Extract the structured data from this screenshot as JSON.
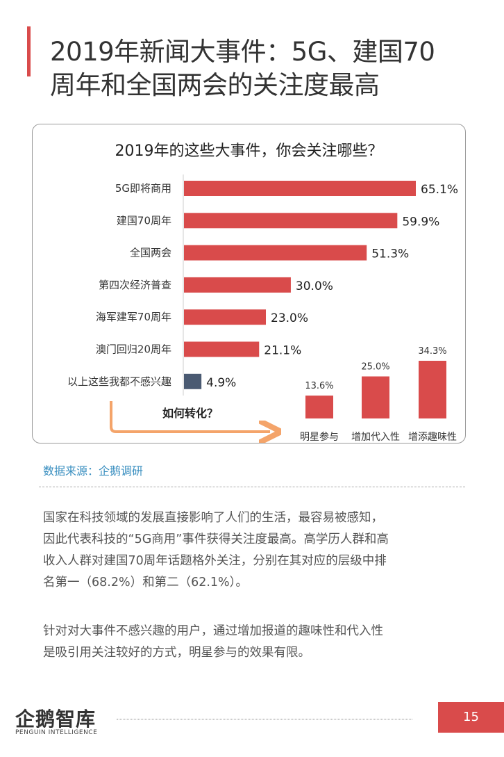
{
  "header": {
    "title_line1": "2019年新闻大事件：5G、建国70",
    "title_line2": "周年和全国两会的关注度最高"
  },
  "chart_data": [
    {
      "type": "bar",
      "orientation": "horizontal",
      "title": "2019年的这些大事件，你会关注哪些？",
      "categories": [
        "5G即将商用",
        "建国70周年",
        "全国两会",
        "第四次经济普查",
        "海军建军70周年",
        "澳门回归20周年",
        "以上这些我都不感兴趣"
      ],
      "values": [
        65.1,
        59.9,
        51.3,
        30.0,
        23.0,
        21.1,
        4.9
      ],
      "value_labels": [
        "65.1%",
        "59.9%",
        "51.3%",
        "30.0%",
        "23.0%",
        "21.1%",
        "4.9%"
      ],
      "colors": [
        "#d94b4b",
        "#d94b4b",
        "#d94b4b",
        "#d94b4b",
        "#d94b4b",
        "#d94b4b",
        "#4a5a72"
      ],
      "xlim": [
        0,
        65.1
      ],
      "grid": false
    },
    {
      "type": "bar",
      "orientation": "vertical",
      "categories": [
        "明星参与",
        "增加代入性",
        "增添趣味性"
      ],
      "values": [
        13.6,
        25.0,
        34.3
      ],
      "value_labels": [
        "13.6%",
        "25.0%",
        "34.3%"
      ],
      "color": "#d94b4b",
      "ylim": [
        0,
        34.3
      ],
      "grid": false
    }
  ],
  "annotation": {
    "arrow_label": "如何转化？",
    "arrow_color": "#f4a46a"
  },
  "source": "数据来源：企鹅调研",
  "paragraphs": {
    "p1": [
      "国家在科技领域的发展直接影响了人们的生活，最容易被感知，",
      "因此代表科技的“5G商用”事件获得关注度最高。高学历人群和高",
      "收入人群对建国70周年话题格外关注，分别在其对应的层级中排",
      "名第一（68.2%）和第二（62.1%）。"
    ],
    "p2": [
      "针对对大事件不感兴趣的用户，通过增加报道的趣味性和代入性",
      "是吸引用关注较好的方式，明星参与的效果有限。"
    ]
  },
  "footer": {
    "logo_text": "企鹅智库",
    "logo_subtext": "PENGUIN INTELLIGENCE",
    "page_number": "15"
  },
  "colors": {
    "accent": "#d94b4b",
    "muted_bar": "#4a5a72",
    "source_text": "#3a8fc0"
  }
}
